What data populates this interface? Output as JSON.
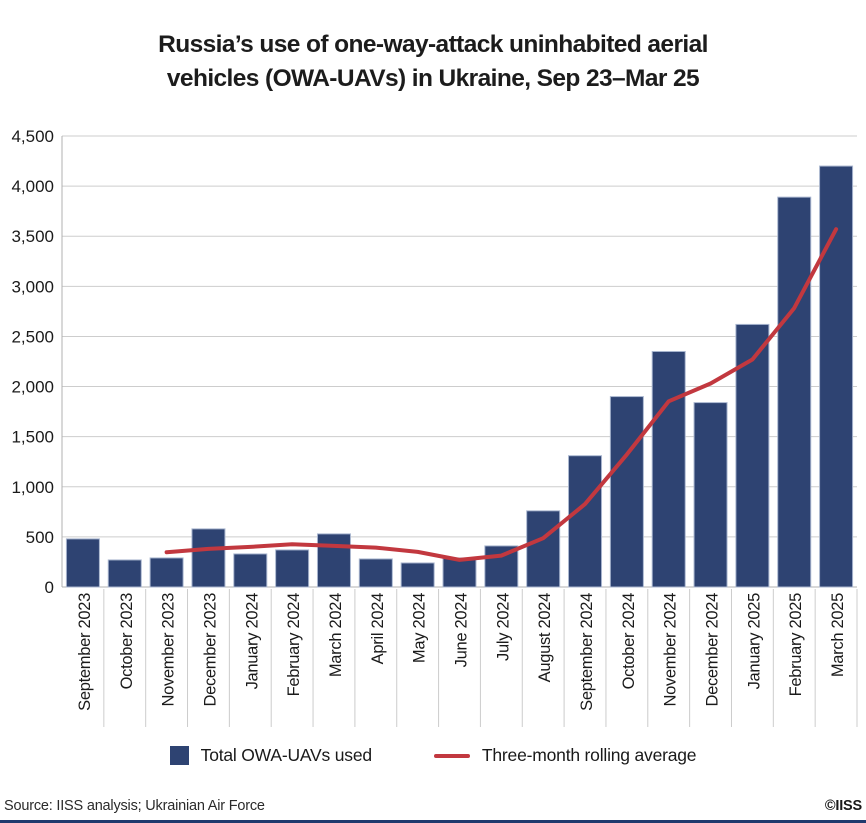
{
  "title": {
    "line1": "Russia’s use of one-way-attack uninhabited aerial",
    "line2": "vehicles (OWA-UAVs) in Ukraine, Sep 23–Mar 25"
  },
  "chart_data": {
    "type": "bar",
    "title": "Russia’s use of one-way-attack uninhabited aerial vehicles (OWA-UAVs) in Ukraine, Sep 23–Mar 25",
    "xlabel": "",
    "ylabel": "",
    "ylim": [
      0,
      4500
    ],
    "ytick_step": 500,
    "yticks": [
      0,
      500,
      1000,
      1500,
      2000,
      2500,
      3000,
      3500,
      4000,
      4500
    ],
    "grid": true,
    "legend_position": "bottom",
    "categories": [
      "September 2023",
      "October 2023",
      "November 2023",
      "December 2023",
      "January 2024",
      "February 2024",
      "March 2024",
      "April 2024",
      "May 2024",
      "June 2024",
      "July 2024",
      "August 2024",
      "September 2024",
      "October 2024",
      "November 2024",
      "December 2024",
      "January 2025",
      "February 2025",
      "March 2025"
    ],
    "series": [
      {
        "name": "Total OWA-UAVs used",
        "type": "bar",
        "color": "#2e4372",
        "border_color": "#a9b6cf",
        "values": [
          480,
          270,
          290,
          580,
          330,
          370,
          530,
          280,
          240,
          290,
          410,
          760,
          1310,
          1900,
          2350,
          1840,
          2620,
          3890,
          4200
        ]
      },
      {
        "name": "Three-month rolling average",
        "type": "line",
        "color": "#c2383f",
        "start_index": 2,
        "values": [
          347,
          380,
          400,
          427,
          410,
          393,
          350,
          270,
          313,
          487,
          827,
          1323,
          1853,
          2030,
          2270,
          2783,
          3570
        ]
      }
    ]
  },
  "legend": {
    "bar_label": "Total OWA-UAVs used",
    "line_label": "Three-month rolling average"
  },
  "footer": {
    "source": "Source: IISS analysis; Ukrainian Air Force",
    "credit": "©IISS"
  },
  "colors": {
    "bar": "#2e4372",
    "bar_border": "#a9b6cf",
    "line": "#c2383f",
    "gridline": "#cdcdcd",
    "axis": "#b0b0b0",
    "tick": "#cccccc",
    "text": "#1a1a1a",
    "bottom_rule": "#1f3a6e"
  }
}
